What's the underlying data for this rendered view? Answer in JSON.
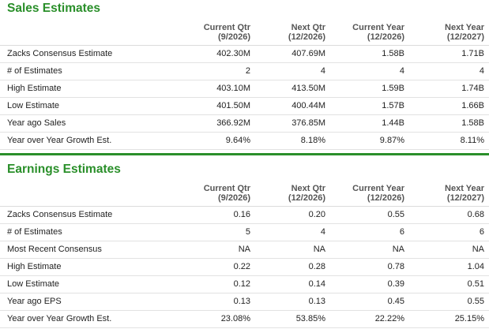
{
  "sales": {
    "title": "Sales Estimates",
    "headers": [
      {
        "line1": "Current Qtr",
        "line2": "(9/2026)"
      },
      {
        "line1": "Next Qtr",
        "line2": "(12/2026)"
      },
      {
        "line1": "Current Year",
        "line2": "(12/2026)"
      },
      {
        "line1": "Next Year",
        "line2": "(12/2027)"
      }
    ],
    "rows": [
      {
        "label": "Zacks Consensus Estimate",
        "values": [
          "402.30M",
          "407.69M",
          "1.58B",
          "1.71B"
        ]
      },
      {
        "label": "# of Estimates",
        "values": [
          "2",
          "4",
          "4",
          "4"
        ]
      },
      {
        "label": "High Estimate",
        "values": [
          "403.10M",
          "413.50M",
          "1.59B",
          "1.74B"
        ]
      },
      {
        "label": "Low Estimate",
        "values": [
          "401.50M",
          "400.44M",
          "1.57B",
          "1.66B"
        ]
      },
      {
        "label": "Year ago Sales",
        "values": [
          "366.92M",
          "376.85M",
          "1.44B",
          "1.58B"
        ]
      },
      {
        "label": "Year over Year Growth Est.",
        "values": [
          "9.64%",
          "8.18%",
          "9.87%",
          "8.11%"
        ]
      }
    ]
  },
  "earnings": {
    "title": "Earnings Estimates",
    "headers": [
      {
        "line1": "Current Qtr",
        "line2": "(9/2026)"
      },
      {
        "line1": "Next Qtr",
        "line2": "(12/2026)"
      },
      {
        "line1": "Current Year",
        "line2": "(12/2026)"
      },
      {
        "line1": "Next Year",
        "line2": "(12/2027)"
      }
    ],
    "rows": [
      {
        "label": "Zacks Consensus Estimate",
        "values": [
          "0.16",
          "0.20",
          "0.55",
          "0.68"
        ]
      },
      {
        "label": "# of Estimates",
        "values": [
          "5",
          "4",
          "6",
          "6"
        ]
      },
      {
        "label": "Most Recent Consensus",
        "values": [
          "NA",
          "NA",
          "NA",
          "NA"
        ]
      },
      {
        "label": "High Estimate",
        "values": [
          "0.22",
          "0.28",
          "0.78",
          "1.04"
        ]
      },
      {
        "label": "Low Estimate",
        "values": [
          "0.12",
          "0.14",
          "0.39",
          "0.51"
        ]
      },
      {
        "label": "Year ago EPS",
        "values": [
          "0.13",
          "0.13",
          "0.45",
          "0.55"
        ]
      },
      {
        "label": "Year over Year Growth Est.",
        "values": [
          "23.08%",
          "53.85%",
          "22.22%",
          "25.15%"
        ]
      }
    ]
  },
  "colors": {
    "accent": "#2a8f2a"
  }
}
